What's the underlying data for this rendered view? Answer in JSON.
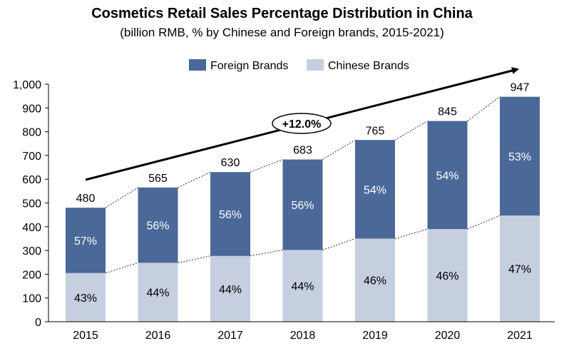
{
  "chart_data": {
    "type": "bar",
    "stacked": true,
    "title": "Cosmetics Retail Sales Percentage Distribution in China",
    "subtitle": "(billion RMB, % by Chinese and Foreign brands, 2015-2021)",
    "categories": [
      "2015",
      "2016",
      "2017",
      "2018",
      "2019",
      "2020",
      "2021"
    ],
    "totals": [
      480,
      565,
      630,
      683,
      765,
      845,
      947
    ],
    "series": [
      {
        "name": "Chinese Brands",
        "color": "#c5cfe0",
        "label_color": "#000000",
        "pct_labels": [
          "43%",
          "44%",
          "44%",
          "44%",
          "46%",
          "46%",
          "47%"
        ],
        "values": [
          205,
          248,
          277,
          302,
          350,
          390,
          447
        ]
      },
      {
        "name": "Foreign Brands",
        "color": "#4a6898",
        "label_color": "#ffffff",
        "pct_labels": [
          "57%",
          "56%",
          "56%",
          "56%",
          "54%",
          "54%",
          "53%"
        ],
        "values": [
          275,
          317,
          353,
          381,
          415,
          455,
          500
        ]
      }
    ],
    "legend_order": [
      "Foreign Brands",
      "Chinese Brands"
    ],
    "legend_position": "top",
    "ylim": [
      0,
      1000
    ],
    "yticks": [
      0,
      100,
      200,
      300,
      400,
      500,
      600,
      700,
      800,
      900,
      1000
    ],
    "ytick_labels": [
      "0",
      "100",
      "200",
      "300",
      "400",
      "500",
      "600",
      "700",
      "800",
      "900",
      "1,000"
    ],
    "cagr_label": "+12.0%",
    "grid": false
  }
}
